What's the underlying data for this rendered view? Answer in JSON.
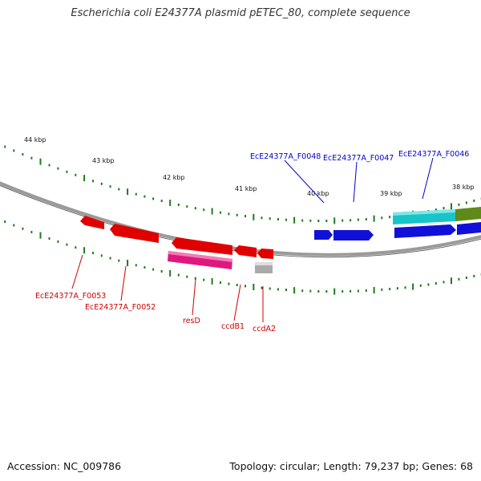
{
  "title": "Escherichia coli E24377A plasmid pETEC_80, complete sequence",
  "footer": {
    "accession": "Accession: NC_009786",
    "summary": "Topology: circular; Length: 79,237 bp; Genes: 68"
  },
  "colors": {
    "backbone": "#8a8a8a",
    "tick": "#1f7a1f",
    "forward_gene": "#1010d8",
    "reverse_gene": "#e00000",
    "highlight_pink": "#e0187e",
    "highlight_cyan": "#18c4c8",
    "highlight_olive": "#5f8a1a",
    "unknown_gray": "#aaaaaa"
  },
  "kbp_labels": [
    "44 kbp",
    "43 kbp",
    "42 kbp",
    "41 kbp",
    "40 kbp",
    "39 kbp",
    "38 kbp"
  ],
  "forward_labels": [
    "EcE24377A_F0048",
    "EcE24377A_F0047",
    "EcE24377A_F0046"
  ],
  "reverse_labels": [
    "EcE24377A_F0053",
    "EcE24377A_F0052",
    "resD",
    "ccdB1",
    "ccdA2"
  ]
}
